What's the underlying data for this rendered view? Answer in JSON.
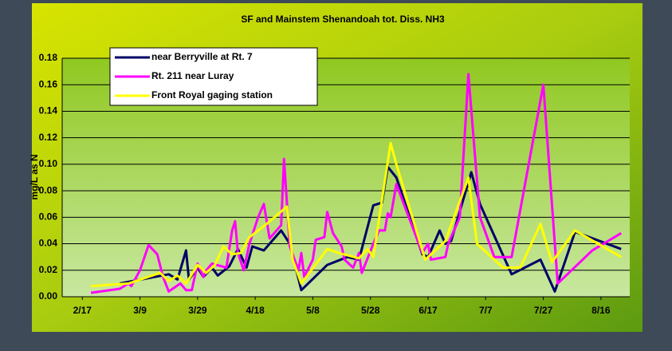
{
  "chart_data": {
    "type": "line",
    "title": "SF and Mainstem Shenandoah tot. Diss. NH3",
    "y_label": "mg/L as N",
    "xlim": [
      "2/10",
      "8/26"
    ],
    "xticks": [
      "2/17",
      "3/9",
      "3/29",
      "4/18",
      "5/8",
      "5/28",
      "6/17",
      "7/7",
      "7/27",
      "8/16"
    ],
    "ylim": [
      0,
      0.18
    ],
    "yticks": [
      {
        "value": 0,
        "label": "0.00"
      },
      {
        "value": 0.02,
        "label": "0.02"
      },
      {
        "value": 0.04,
        "label": "0.04"
      },
      {
        "value": 0.06,
        "label": "0.06"
      },
      {
        "value": 0.08,
        "label": "0.08"
      },
      {
        "value": 0.1,
        "label": "0.10"
      },
      {
        "value": 0.12,
        "label": "0.12"
      },
      {
        "value": 0.14,
        "label": "0.14"
      },
      {
        "value": 0.16,
        "label": "0.16"
      },
      {
        "value": 0.18,
        "label": "0.18"
      }
    ],
    "grid": true,
    "legend": "top-left",
    "series": [
      {
        "name": "near Berryville at Rt. 7",
        "color": "#000066",
        "x": [
          "3/2",
          "3/19",
          "3/22",
          "3/25",
          "3/26",
          "3/29",
          "3/31",
          "4/3",
          "4/5",
          "4/9",
          "4/12",
          "4/15",
          "4/17",
          "4/21",
          "4/27",
          "4/30",
          "5/4",
          "5/13",
          "5/20",
          "5/24",
          "5/29",
          "6/1",
          "6/3",
          "6/6",
          "6/15",
          "6/17",
          "6/21",
          "6/23",
          "6/25",
          "7/2",
          "7/5",
          "7/16",
          "7/26",
          "7/31",
          "8/5",
          "8/7",
          "8/23"
        ],
        "values": [
          0.01,
          0.017,
          0.013,
          0.035,
          0.013,
          0.022,
          0.015,
          0.022,
          0.016,
          0.023,
          0.036,
          0.022,
          0.038,
          0.035,
          0.05,
          0.04,
          0.005,
          0.024,
          0.03,
          0.028,
          0.069,
          0.071,
          0.098,
          0.09,
          0.032,
          0.03,
          0.05,
          0.04,
          0.042,
          0.094,
          0.07,
          0.017,
          0.028,
          0.004,
          0.036,
          0.049,
          0.036
        ]
      },
      {
        "name": "Rt. 211 near Luray",
        "color": "#ff00ff",
        "x": [
          "2/20",
          "3/2",
          "3/5",
          "3/6",
          "3/9",
          "3/12",
          "3/15",
          "3/17",
          "3/19",
          "3/23",
          "3/25",
          "3/27",
          "3/29",
          "3/31",
          "4/1",
          "4/3",
          "4/8",
          "4/10",
          "4/11",
          "4/12",
          "4/14",
          "4/16",
          "4/19",
          "4/21",
          "4/23",
          "4/27",
          "4/28",
          "4/30",
          "5/3",
          "5/4",
          "5/5",
          "5/8",
          "5/9",
          "5/12",
          "5/13",
          "5/15",
          "5/18",
          "5/19",
          "5/22",
          "5/24",
          "5/25",
          "5/29",
          "5/31",
          "6/2",
          "6/3",
          "6/4",
          "6/6",
          "6/15",
          "6/17",
          "6/18",
          "6/23",
          "6/24",
          "6/28",
          "7/1",
          "7/5",
          "7/10",
          "7/16",
          "7/27",
          "8/1",
          "8/13",
          "8/23"
        ],
        "values": [
          0.003,
          0.006,
          0.01,
          0.008,
          0.02,
          0.039,
          0.032,
          0.015,
          0.004,
          0.01,
          0.005,
          0.005,
          0.025,
          0.015,
          0.02,
          0.025,
          0.022,
          0.05,
          0.057,
          0.033,
          0.02,
          0.04,
          0.06,
          0.07,
          0.044,
          0.054,
          0.104,
          0.038,
          0.02,
          0.033,
          0.015,
          0.028,
          0.043,
          0.045,
          0.064,
          0.048,
          0.038,
          0.028,
          0.022,
          0.033,
          0.018,
          0.04,
          0.05,
          0.05,
          0.063,
          0.06,
          0.085,
          0.033,
          0.04,
          0.028,
          0.03,
          0.04,
          0.06,
          0.168,
          0.06,
          0.03,
          0.03,
          0.16,
          0.01,
          0.035,
          0.048
        ]
      },
      {
        "name": "Front Royal gaging station",
        "color": "#ffff00",
        "x": [
          "2/20",
          "3/5",
          "3/16",
          "3/19",
          "3/22",
          "3/25",
          "3/29",
          "4/1",
          "4/4",
          "4/7",
          "4/10",
          "4/13",
          "4/16",
          "4/22",
          "4/29",
          "5/1",
          "5/4",
          "5/13",
          "5/17",
          "5/24",
          "5/27",
          "5/29",
          "6/4",
          "6/6",
          "6/16",
          "6/23",
          "7/1",
          "7/4",
          "7/13",
          "7/19",
          "7/26",
          "7/30",
          "8/7",
          "8/23"
        ],
        "values": [
          0.008,
          0.01,
          0.018,
          0.012,
          0.016,
          0.01,
          0.024,
          0.018,
          0.024,
          0.038,
          0.032,
          0.033,
          0.045,
          0.055,
          0.068,
          0.028,
          0.01,
          0.036,
          0.033,
          0.029,
          0.036,
          0.03,
          0.116,
          0.1,
          0.028,
          0.042,
          0.09,
          0.04,
          0.022,
          0.022,
          0.055,
          0.026,
          0.05,
          0.03
        ]
      }
    ]
  }
}
